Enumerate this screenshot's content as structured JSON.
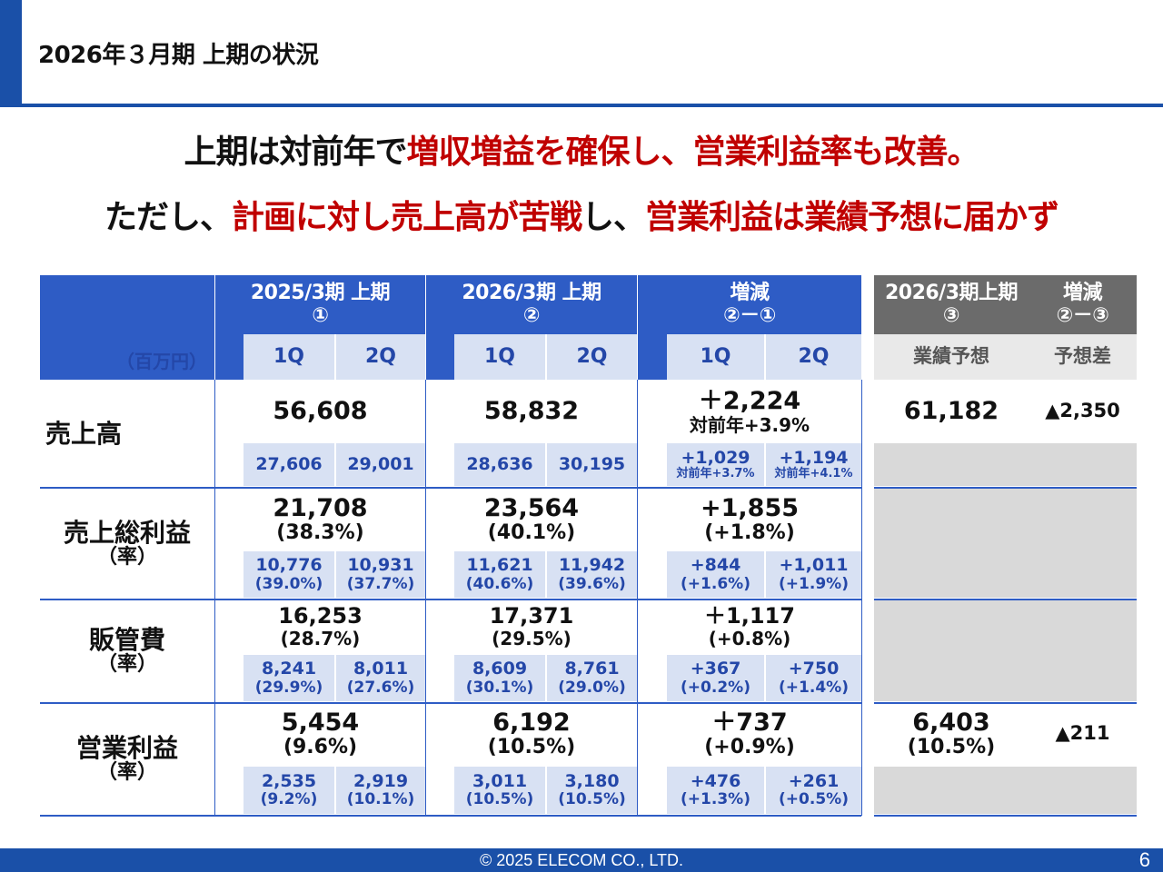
{
  "title": "2026年３月期 上期の状況",
  "headline1": {
    "part1": "上期は対前年で",
    "part2": "増収増益を確保し、営業利益率も改善。"
  },
  "headline2": {
    "part1": "ただし、",
    "part2": "計画に対し売上高が苦戦",
    "part3": "し、",
    "part4": "営業利益は業績予想に届かず"
  },
  "table": {
    "unit": "（百万円）",
    "h_prev": {
      "line1": "2025/3期 上期",
      "line2": "①"
    },
    "h_curr": {
      "line1": "2026/3期 上期",
      "line2": "②"
    },
    "h_diff": {
      "line1": "増減",
      "line2": "②－①"
    },
    "h_fc": {
      "line1": "2026/3期上期",
      "line2": "③"
    },
    "h_fcdiff": {
      "line1": "増減",
      "line2": "②－③"
    },
    "q1": "1Q",
    "q2": "2Q",
    "fc_label": "業績予想",
    "fcdiff_label": "予想差",
    "rows": {
      "sales": {
        "label": "売上高",
        "prev": "56,608",
        "curr": "58,832",
        "diff": "＋2,224",
        "diff_sub": "対前年+3.9%",
        "fc": "61,182",
        "fcdiff": "▲2,350",
        "prev_q1": "27,606",
        "prev_q2": "29,001",
        "curr_q1": "28,636",
        "curr_q2": "30,195",
        "diff_q1": "+1,029",
        "diff_q1_sub": "対前年+3.7%",
        "diff_q2": "+1,194",
        "diff_q2_sub": "対前年+4.1%"
      },
      "gross": {
        "label": "売上総利益",
        "label_sub": "（率）",
        "prev": "21,708",
        "prev_r": "(38.3%)",
        "curr": "23,564",
        "curr_r": "(40.1%)",
        "diff": "+1,855",
        "diff_r": "(+1.8%)",
        "prev_q1": "10,776",
        "prev_q1_r": "(39.0%)",
        "prev_q2": "10,931",
        "prev_q2_r": "(37.7%)",
        "curr_q1": "11,621",
        "curr_q1_r": "(40.6%)",
        "curr_q2": "11,942",
        "curr_q2_r": "(39.6%)",
        "diff_q1": "+844",
        "diff_q1_r": "(+1.6%)",
        "diff_q2": "+1,011",
        "diff_q2_r": "(+1.9%)"
      },
      "sga": {
        "label": "販管費",
        "label_sub": "（率）",
        "prev": "16,253",
        "prev_r": "(28.7%)",
        "curr": "17,371",
        "curr_r": "(29.5%)",
        "diff": "＋1,117",
        "diff_r": "(+0.8%)",
        "prev_q1": "8,241",
        "prev_q1_r": "(29.9%)",
        "prev_q2": "8,011",
        "prev_q2_r": "(27.6%)",
        "curr_q1": "8,609",
        "curr_q1_r": "(30.1%)",
        "curr_q2": "8,761",
        "curr_q2_r": "(29.0%)",
        "diff_q1": "+367",
        "diff_q1_r": "(+0.2%)",
        "diff_q2": "+750",
        "diff_q2_r": "(+1.4%)"
      },
      "op": {
        "label": "営業利益",
        "label_sub": "（率）",
        "prev": "5,454",
        "prev_r": "(9.6%)",
        "curr": "6,192",
        "curr_r": "(10.5%)",
        "diff": "＋737",
        "diff_r": "(+0.9%)",
        "fc": "6,403",
        "fc_r": "(10.5%)",
        "fcdiff": "▲211",
        "prev_q1": "2,535",
        "prev_q1_r": "(9.2%)",
        "prev_q2": "2,919",
        "prev_q2_r": "(10.1%)",
        "curr_q1": "3,011",
        "curr_q1_r": "(10.5%)",
        "curr_q2": "3,180",
        "curr_q2_r": "(10.5%)",
        "diff_q1": "+476",
        "diff_q1_r": "(+1.3%)",
        "diff_q2": "+261",
        "diff_q2_r": "(+0.5%)"
      }
    }
  },
  "footer": {
    "copyright": "© 2025 ELECOM CO., LTD.",
    "page": "6"
  },
  "colors": {
    "brand_blue": "#1a50a8",
    "header_blue": "#2e5cc5",
    "accent_red": "#c00000",
    "light_blue": "#d8e1f3",
    "gray": "#6b6b6b"
  }
}
